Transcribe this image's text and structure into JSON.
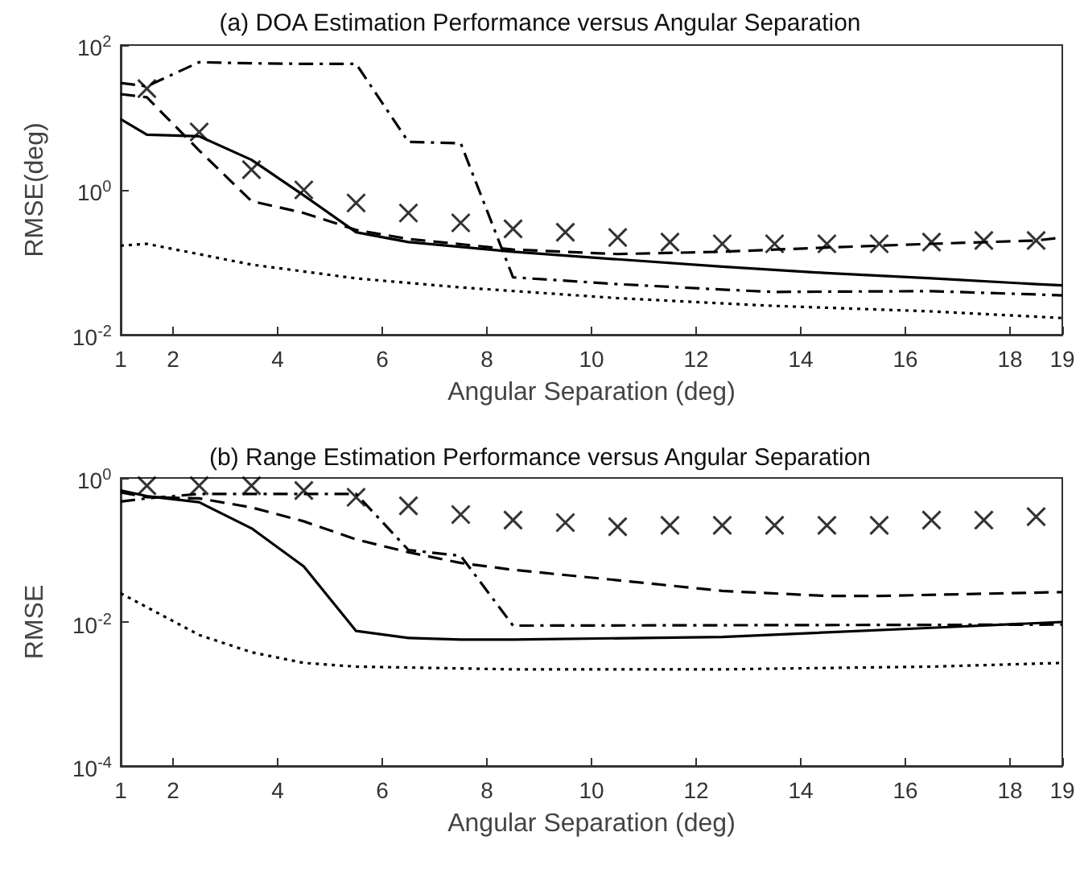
{
  "chart_data": [
    {
      "type": "line",
      "title": "(a) DOA Estimation Performance versus Angular Separation",
      "xlabel": "Angular Separation (deg)",
      "ylabel": "RMSE(deg)",
      "log": "y",
      "grid": false,
      "xlim": [
        1,
        19
      ],
      "xticks": [
        1,
        2,
        4,
        6,
        8,
        10,
        12,
        14,
        16,
        18,
        19
      ],
      "ylim": [
        0.01,
        100
      ],
      "yticks": [
        {
          "value": 0.01,
          "label": "10$^{-2}$"
        },
        {
          "value": 1,
          "label": "10$^{0}$"
        },
        {
          "value": 100,
          "label": "10$^{2}$"
        }
      ],
      "series": [
        {
          "type": "line",
          "line_style": "solid",
          "marker": "none",
          "color": "#000000",
          "x": [
            1,
            1.5,
            2.5,
            3.5,
            4.5,
            5.5,
            6.5,
            8.5,
            10.5,
            12.5,
            14.5,
            16.5,
            18.5,
            19
          ],
          "values": [
            9.5,
            5.8,
            5.5,
            2.6,
            0.84,
            0.26,
            0.19,
            0.14,
            0.11,
            0.087,
            0.071,
            0.06,
            0.05,
            0.048
          ]
        },
        {
          "type": "line",
          "line_style": "dashed",
          "marker": "none",
          "color": "#000000",
          "x": [
            1,
            1.5,
            2.5,
            3.5,
            4.5,
            5.5,
            6.5,
            8.5,
            10.5,
            12.5,
            14.5,
            16.5,
            18.5,
            19
          ],
          "values": [
            21,
            19,
            3.5,
            0.7,
            0.48,
            0.28,
            0.21,
            0.15,
            0.13,
            0.14,
            0.16,
            0.18,
            0.2,
            0.22
          ]
        },
        {
          "type": "line",
          "line_style": "dashdot",
          "marker": "none",
          "color": "#000000",
          "x": [
            1,
            1.5,
            2.5,
            3.5,
            4.5,
            5.5,
            6.5,
            7.5,
            8.5,
            10.5,
            12.5,
            13.5,
            16.5,
            19
          ],
          "values": [
            30,
            27,
            58,
            56,
            55,
            55,
            4.6,
            4.4,
            0.062,
            0.05,
            0.042,
            0.039,
            0.04,
            0.035
          ]
        },
        {
          "type": "line",
          "line_style": "dotted",
          "marker": "none",
          "color": "#000000",
          "x": [
            1,
            1.5,
            3.5,
            5.5,
            7.5,
            10.5,
            13.5,
            16.5,
            19
          ],
          "values": [
            0.17,
            0.18,
            0.093,
            0.06,
            0.045,
            0.032,
            0.025,
            0.021,
            0.017
          ]
        },
        {
          "type": "scatter",
          "marker": "cross",
          "color": "#000000",
          "x": [
            1.5,
            2.5,
            3.5,
            4.5,
            5.5,
            6.5,
            7.5,
            8.5,
            9.5,
            10.5,
            11.5,
            12.5,
            13.5,
            14.5,
            15.5,
            16.5,
            17.5,
            18.5
          ],
          "values": [
            25,
            6.3,
            1.9,
            1.0,
            0.66,
            0.48,
            0.35,
            0.29,
            0.26,
            0.22,
            0.19,
            0.18,
            0.18,
            0.18,
            0.18,
            0.19,
            0.2,
            0.2
          ]
        }
      ]
    },
    {
      "type": "line",
      "title": "(b) Range Estimation Performance versus Angular Separation",
      "xlabel": "Angular Separation (deg)",
      "ylabel": "RMSE",
      "log": "y",
      "grid": false,
      "xlim": [
        1,
        19
      ],
      "xticks": [
        1,
        2,
        4,
        6,
        8,
        10,
        12,
        14,
        16,
        18,
        19
      ],
      "ylim": [
        0.0001,
        1
      ],
      "yticks": [
        {
          "value": 0.0001,
          "label": "10$^{-4}$"
        },
        {
          "value": 0.01,
          "label": "10$^{-2}$"
        },
        {
          "value": 1,
          "label": "10$^{0}$"
        }
      ],
      "series": [
        {
          "type": "line",
          "line_style": "solid",
          "marker": "none",
          "color": "#000000",
          "x": [
            1,
            1.5,
            2.5,
            3.5,
            4.5,
            5.5,
            6.5,
            7.5,
            8.5,
            12.5,
            16.5,
            19
          ],
          "values": [
            0.67,
            0.56,
            0.46,
            0.2,
            0.059,
            0.0075,
            0.006,
            0.0057,
            0.0057,
            0.0062,
            0.0083,
            0.01
          ]
        },
        {
          "type": "line",
          "line_style": "dashed",
          "marker": "none",
          "color": "#000000",
          "x": [
            1,
            1.5,
            2.5,
            3.5,
            4.5,
            5.5,
            6.5,
            7.5,
            8.5,
            10.5,
            12.5,
            14.5,
            15.5,
            19
          ],
          "values": [
            0.63,
            0.54,
            0.52,
            0.39,
            0.25,
            0.14,
            0.093,
            0.066,
            0.053,
            0.038,
            0.027,
            0.023,
            0.023,
            0.026
          ]
        },
        {
          "type": "line",
          "line_style": "dashdot",
          "marker": "none",
          "color": "#000000",
          "x": [
            1,
            1.5,
            2.5,
            3.5,
            4.5,
            5.5,
            6.5,
            7.5,
            8.5,
            19
          ],
          "values": [
            0.47,
            0.52,
            0.6,
            0.6,
            0.6,
            0.6,
            0.1,
            0.083,
            0.0089,
            0.0092
          ]
        },
        {
          "type": "line",
          "line_style": "dotted",
          "marker": "none",
          "color": "#000000",
          "x": [
            1,
            2.5,
            3.5,
            4.5,
            5.5,
            8.5,
            12.5,
            16.5,
            19
          ],
          "values": [
            0.025,
            0.0066,
            0.0038,
            0.0027,
            0.0024,
            0.0022,
            0.0022,
            0.0024,
            0.0027
          ]
        },
        {
          "type": "scatter",
          "marker": "cross",
          "color": "#000000",
          "x": [
            1.5,
            2.5,
            3.5,
            4.5,
            5.5,
            6.5,
            7.5,
            8.5,
            9.5,
            10.5,
            11.5,
            12.5,
            13.5,
            14.5,
            15.5,
            16.5,
            17.5,
            18.5
          ],
          "values": [
            0.78,
            0.78,
            0.78,
            0.67,
            0.54,
            0.41,
            0.31,
            0.26,
            0.24,
            0.21,
            0.22,
            0.22,
            0.22,
            0.22,
            0.22,
            0.26,
            0.26,
            0.29
          ]
        }
      ]
    }
  ]
}
